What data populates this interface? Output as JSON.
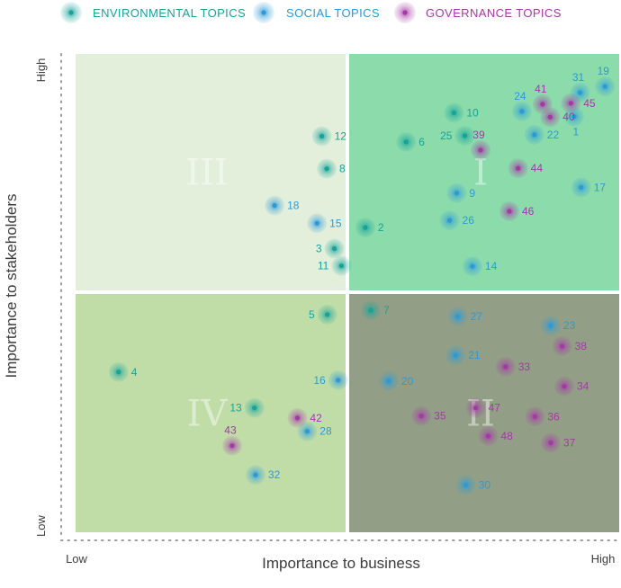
{
  "legend": [
    {
      "key": "env",
      "label": "ENVIRONMENTAL TOPICS",
      "color": "#15a39a"
    },
    {
      "key": "soc",
      "label": "SOCIAL TOPICS",
      "color": "#2b9ad8"
    },
    {
      "key": "gov",
      "label": "GOVERNANCE TOPICS",
      "color": "#a438a6"
    }
  ],
  "chart_data": {
    "type": "scatter",
    "xlabel": "Importance to business",
    "ylabel": "Importance to stakeholders",
    "x_tick_labels": [
      "Low",
      "High"
    ],
    "y_tick_labels": [
      "Low",
      "High"
    ],
    "xlim": [
      0,
      100
    ],
    "ylim": [
      0,
      100
    ],
    "quadrants": [
      {
        "label": "III",
        "position": "top-left",
        "color": "#e3efdb"
      },
      {
        "label": "I",
        "position": "top-right",
        "color": "#8bdbab"
      },
      {
        "label": "IV",
        "position": "bottom-left",
        "color": "#c0dda8"
      },
      {
        "label": "II",
        "position": "bottom-right",
        "color": "#929f86"
      }
    ],
    "series": [
      {
        "name": "ENVIRONMENTAL TOPICS",
        "key": "env",
        "points": [
          {
            "id": "12",
            "x": 45.3,
            "y": 82.8
          },
          {
            "id": "8",
            "x": 46.2,
            "y": 76.0
          },
          {
            "id": "3",
            "x": 47.6,
            "y": 59.3
          },
          {
            "id": "11",
            "x": 48.9,
            "y": 55.7
          },
          {
            "id": "2",
            "x": 53.3,
            "y": 63.7
          },
          {
            "id": "6",
            "x": 60.8,
            "y": 81.6
          },
          {
            "id": "10",
            "x": 69.6,
            "y": 87.7
          },
          {
            "id": "25",
            "x": 71.6,
            "y": 82.9
          },
          {
            "id": "7",
            "x": 54.3,
            "y": 46.4
          },
          {
            "id": "5",
            "x": 46.3,
            "y": 45.5
          },
          {
            "id": "13",
            "x": 32.9,
            "y": 26.0
          },
          {
            "id": "4",
            "x": 7.9,
            "y": 33.5
          }
        ]
      },
      {
        "name": "SOCIAL TOPICS",
        "key": "soc",
        "points": [
          {
            "id": "19",
            "x": 97.4,
            "y": 93.2
          },
          {
            "id": "31",
            "x": 92.8,
            "y": 91.9
          },
          {
            "id": "24",
            "x": 82.1,
            "y": 88.0
          },
          {
            "id": "1",
            "x": 91.7,
            "y": 86.9
          },
          {
            "id": "22",
            "x": 84.4,
            "y": 83.1
          },
          {
            "id": "9",
            "x": 70.1,
            "y": 70.9
          },
          {
            "id": "17",
            "x": 93.0,
            "y": 72.1
          },
          {
            "id": "26",
            "x": 68.8,
            "y": 65.2
          },
          {
            "id": "18",
            "x": 36.6,
            "y": 68.3
          },
          {
            "id": "15",
            "x": 44.4,
            "y": 64.6
          },
          {
            "id": "14",
            "x": 73.0,
            "y": 55.6
          },
          {
            "id": "27",
            "x": 70.3,
            "y": 45.1
          },
          {
            "id": "23",
            "x": 87.4,
            "y": 43.2
          },
          {
            "id": "21",
            "x": 69.9,
            "y": 37.0
          },
          {
            "id": "20",
            "x": 57.6,
            "y": 31.6
          },
          {
            "id": "16",
            "x": 48.3,
            "y": 31.8
          },
          {
            "id": "28",
            "x": 42.6,
            "y": 21.1
          },
          {
            "id": "32",
            "x": 33.1,
            "y": 12.0
          },
          {
            "id": "30",
            "x": 71.8,
            "y": 9.9
          }
        ]
      },
      {
        "name": "GOVERNANCE TOPICS",
        "key": "gov",
        "points": [
          {
            "id": "41",
            "x": 85.9,
            "y": 89.5
          },
          {
            "id": "45",
            "x": 91.1,
            "y": 89.7
          },
          {
            "id": "40",
            "x": 87.3,
            "y": 86.8
          },
          {
            "id": "39",
            "x": 74.5,
            "y": 79.9
          },
          {
            "id": "44",
            "x": 81.4,
            "y": 76.1
          },
          {
            "id": "46",
            "x": 79.8,
            "y": 67.1
          },
          {
            "id": "33",
            "x": 79.1,
            "y": 34.6
          },
          {
            "id": "38",
            "x": 89.5,
            "y": 38.9
          },
          {
            "id": "34",
            "x": 89.9,
            "y": 30.5
          },
          {
            "id": "47",
            "x": 73.6,
            "y": 26.0
          },
          {
            "id": "35",
            "x": 63.6,
            "y": 24.3
          },
          {
            "id": "36",
            "x": 84.5,
            "y": 24.2
          },
          {
            "id": "48",
            "x": 75.9,
            "y": 20.1
          },
          {
            "id": "37",
            "x": 87.4,
            "y": 18.7
          },
          {
            "id": "42",
            "x": 40.8,
            "y": 23.9
          },
          {
            "id": "43",
            "x": 28.8,
            "y": 18.1
          }
        ]
      }
    ]
  }
}
